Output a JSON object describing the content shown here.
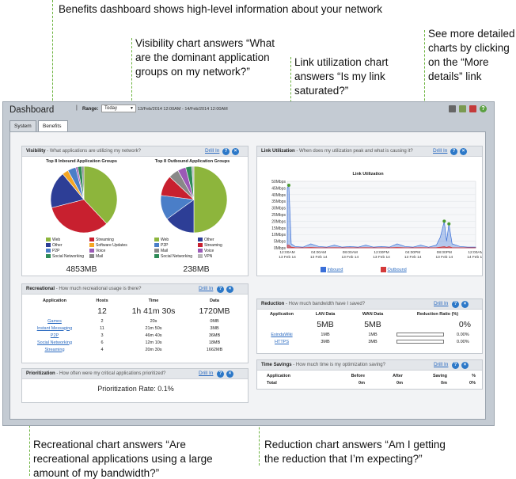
{
  "callouts": {
    "top": "Benefits dashboard shows high-level information about your network",
    "visibility": [
      "Visibility chart answers “What",
      "are the dominant application",
      "groups on my network?”"
    ],
    "link": [
      "Link utilization chart",
      "answers “Is my link",
      "saturated?”"
    ],
    "details": [
      "See more detailed",
      "charts by clicking",
      "on the “More",
      "details” link"
    ],
    "recreational": [
      "Recreational chart answers “Are",
      "recreational applications using a large",
      "amount of my bandwidth?”"
    ],
    "reduction": [
      "Reduction chart answers “Am I getting",
      "the reduction that I’m expecting?”"
    ]
  },
  "app": {
    "title": "Dashboard",
    "range_label": "Range:",
    "range_value": "Today",
    "range_dates": "13/Feb/2014 12:00AM - 14/Feb/2014 12:00AM",
    "tabs": [
      "System",
      "Benefits"
    ],
    "toolbar_icons": [
      "print-icon",
      "export-icon",
      "pdf-icon",
      "help-icon"
    ]
  },
  "colors": {
    "callout_green": "#6cb33f",
    "web": "#8db53c",
    "other": "#2d3e96",
    "p2p": "#4a7ec8",
    "social_networking": "#2e8b57",
    "streaming": "#c8202f",
    "software_updates": "#f5a623",
    "voice": "#9b59b6",
    "mail": "#888888",
    "vpn": "#b8b8b8",
    "inbound": "#3a6fd8",
    "outbound": "#d43a3a"
  },
  "visibility": {
    "label": "Visibility",
    "subtitle": "- What applications are utilizing my network?",
    "drill": "Drill In",
    "inbound": {
      "title": "Top 8 Inbound Application Groups",
      "total": "4853MB",
      "legend": [
        {
          "name": "Web",
          "color": "#8db53c"
        },
        {
          "name": "Streaming",
          "color": "#c8202f"
        },
        {
          "name": "Other",
          "color": "#2d3e96"
        },
        {
          "name": "Software Updates",
          "color": "#f5a623"
        },
        {
          "name": "P2P",
          "color": "#4a7ec8"
        },
        {
          "name": "Voice",
          "color": "#9b59b6"
        },
        {
          "name": "Social Networking",
          "color": "#2e8b57"
        },
        {
          "name": "Mail",
          "color": "#888888"
        }
      ]
    },
    "outbound": {
      "title": "Top 8 Outbound Application Groups",
      "total": "238MB",
      "legend": [
        {
          "name": "Web",
          "color": "#8db53c"
        },
        {
          "name": "Other",
          "color": "#2d3e96"
        },
        {
          "name": "P2P",
          "color": "#4a7ec8"
        },
        {
          "name": "Streaming",
          "color": "#c8202f"
        },
        {
          "name": "Mail",
          "color": "#888888"
        },
        {
          "name": "Voice",
          "color": "#9b59b6"
        },
        {
          "name": "Social Networking",
          "color": "#2e8b57"
        },
        {
          "name": "VPN",
          "color": "#b8b8b8"
        }
      ]
    }
  },
  "link": {
    "label": "Link Utilization",
    "subtitle": "- When does my utilization peak and what is causing it?",
    "drill": "Drill In",
    "chart_title": "Link Utilization",
    "legend_inbound": "Inbound",
    "legend_outbound": "Outbound"
  },
  "recreational": {
    "label": "Recreational",
    "subtitle": "- How much recreational usage is there?",
    "drill": "Drill In",
    "headers": [
      "Application",
      "Hosts",
      "Time",
      "Data"
    ],
    "totals": [
      "",
      "12",
      "1h 41m 30s",
      "1720MB"
    ],
    "rows": [
      [
        "Games",
        "2",
        "20s",
        "0MB"
      ],
      [
        "Instant Messaging",
        "11",
        "21m 50s",
        "3MB"
      ],
      [
        "P2P",
        "3",
        "46m 40s",
        "36MB"
      ],
      [
        "Social Networking",
        "6",
        "12m 10s",
        "18MB"
      ],
      [
        "Streaming",
        "4",
        "20m 30s",
        "1662MB"
      ]
    ]
  },
  "prioritization": {
    "label": "Prioritization",
    "subtitle": "- How often were my critical applications prioritized?",
    "drill": "Drill In",
    "rate": "Prioritization Rate: 0.1%"
  },
  "reduction": {
    "label": "Reduction",
    "subtitle": "- How much bandwidth have I saved?",
    "drill": "Drill In",
    "headers": [
      "Application",
      "LAN Data",
      "WAN Data",
      "Reduction Ratio (%)"
    ],
    "totals": [
      "",
      "5MB",
      "5MB",
      "0%"
    ],
    "rows": [
      [
        "ExindaWiki",
        "1MB",
        "1MB",
        "0.00%"
      ],
      [
        "HTTPS",
        "3MB",
        "3MB",
        "0.00%"
      ]
    ]
  },
  "timesavings": {
    "label": "Time Savings",
    "subtitle": "- How much time is my optimization saving?",
    "drill": "Drill In",
    "headers": [
      "Application",
      "Before",
      "After",
      "Saving",
      "%"
    ],
    "total": [
      "Total",
      "0m",
      "0m",
      "0m",
      "0%"
    ]
  },
  "chart_data": [
    {
      "type": "pie",
      "title": "Top 8 Inbound Application Groups",
      "categories": [
        "Web",
        "Streaming",
        "Other",
        "Software Updates",
        "P2P",
        "Voice",
        "Social Networking",
        "Mail"
      ],
      "values": [
        38,
        33,
        18,
        3,
        4,
        1,
        2,
        1
      ]
    },
    {
      "type": "pie",
      "title": "Top 8 Outbound Application Groups",
      "categories": [
        "Web",
        "Other",
        "P2P",
        "Streaming",
        "Mail",
        "Voice",
        "Social Networking",
        "VPN"
      ],
      "values": [
        50,
        15,
        12,
        10,
        5,
        4,
        3,
        1
      ]
    },
    {
      "type": "area",
      "title": "Link Utilization",
      "ylabels": [
        "0Mbps",
        "5Mbps",
        "10Mbps",
        "15Mbps",
        "20Mbps",
        "25Mbps",
        "30Mbps",
        "35Mbps",
        "40Mbps",
        "45Mbps",
        "50Mbps"
      ],
      "ylim": [
        0,
        50
      ],
      "xlabels": [
        "12:00AM\n13 Feb 14",
        "04:00AM\n13 Feb 14",
        "08:00AM\n13 Feb 14",
        "12:00PM\n13 Feb 14",
        "04:00PM\n13 Feb 14",
        "08:00PM\n13 Feb 14",
        "12:00AM\n14 Feb 14"
      ],
      "x": [
        0,
        0.2,
        0.5,
        1,
        2,
        3,
        4,
        5,
        6,
        7,
        8,
        9,
        10,
        11,
        12,
        13,
        14,
        15,
        16,
        17,
        18,
        19,
        19.5,
        20,
        20.3,
        20.6,
        21,
        22,
        23,
        24
      ],
      "series": [
        {
          "name": "Inbound",
          "values": [
            45,
            47,
            3,
            1,
            0.5,
            3,
            1,
            0.5,
            2,
            0.5,
            1,
            0.5,
            2,
            0.5,
            1,
            0.5,
            3,
            1,
            0.5,
            2,
            0.5,
            2,
            8,
            20,
            5,
            18,
            3,
            1,
            0.5,
            0.5
          ]
        },
        {
          "name": "Outbound",
          "values": [
            2,
            2,
            0.5,
            0.2,
            0.1,
            0.3,
            0.1,
            0.1,
            0.2,
            0.1,
            0.1,
            0.1,
            0.2,
            0.1,
            0.1,
            0.1,
            0.3,
            0.1,
            0.1,
            0.2,
            0.1,
            0.2,
            0.5,
            1,
            0.3,
            1,
            0.2,
            0.1,
            0.1,
            0.1
          ]
        }
      ]
    }
  ]
}
